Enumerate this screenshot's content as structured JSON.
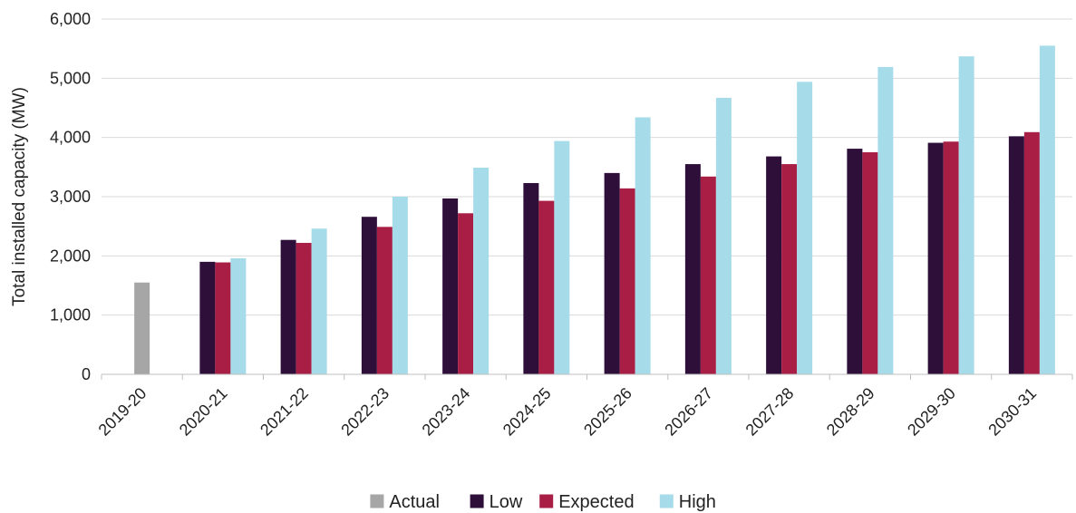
{
  "chart_data": {
    "type": "bar",
    "title": "",
    "xlabel": "",
    "ylabel": "Total installed capacity (MW)",
    "ylim": [
      0,
      6000
    ],
    "yticks": [
      0,
      1000,
      2000,
      3000,
      4000,
      5000,
      6000
    ],
    "ytick_labels": [
      "0",
      "1,000",
      "2,000",
      "3,000",
      "4,000",
      "5,000",
      "6,000"
    ],
    "grid": true,
    "legend_position": "bottom-center",
    "categories": [
      "2019-20",
      "2020-21",
      "2021-22",
      "2022-23",
      "2023-24",
      "2024-25",
      "2025-26",
      "2026-27",
      "2027-28",
      "2028-29",
      "2029-30",
      "2030-31"
    ],
    "series": [
      {
        "name": "Actual",
        "color": "#a6a6a6",
        "values": [
          1550,
          null,
          null,
          null,
          null,
          null,
          null,
          null,
          null,
          null,
          null,
          null
        ]
      },
      {
        "name": "Low",
        "color": "#2e0f3a",
        "values": [
          null,
          1900,
          2270,
          2660,
          2970,
          3230,
          3400,
          3550,
          3680,
          3810,
          3910,
          4020
        ]
      },
      {
        "name": "Expected",
        "color": "#a81e45",
        "values": [
          null,
          1890,
          2220,
          2490,
          2720,
          2930,
          3140,
          3340,
          3550,
          3750,
          3930,
          4090
        ]
      },
      {
        "name": "High",
        "color": "#a6dcea",
        "values": [
          null,
          1960,
          2460,
          3000,
          3490,
          3940,
          4340,
          4670,
          4940,
          5190,
          5370,
          5550
        ]
      }
    ]
  }
}
